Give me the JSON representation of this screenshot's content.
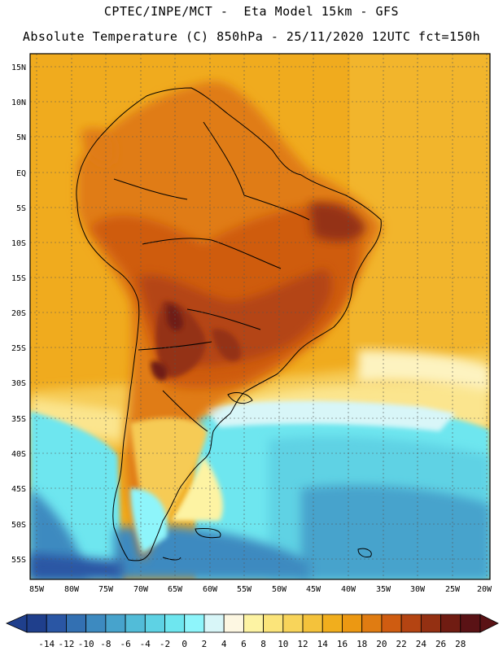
{
  "header": {
    "line1": "CPTEC/INPE/MCT -  Eta Model 15km - GFS",
    "line2": "Absolute Temperature (C) 850hPa - 25/11/2020 12UTC fct=150h"
  },
  "map": {
    "variable": "Absolute Temperature",
    "units": "C",
    "level": "850hPa",
    "model": "Eta Model 15km - GFS",
    "lat_labels": [
      "15N",
      "10N",
      "5N",
      "EQ",
      "5S",
      "10S",
      "15S",
      "20S",
      "25S",
      "30S",
      "35S",
      "40S",
      "45S",
      "50S",
      "55S"
    ],
    "lon_labels": [
      "85W",
      "80W",
      "75W",
      "70W",
      "65W",
      "60W",
      "55W",
      "50W",
      "45W",
      "40W",
      "35W",
      "30W",
      "25W",
      "20W"
    ]
  },
  "colorbar": {
    "labels": [
      "-14",
      "-12",
      "-10",
      "-8",
      "-6",
      "-4",
      "-2",
      "0",
      "2",
      "4",
      "6",
      "8",
      "10",
      "12",
      "14",
      "16",
      "18",
      "20",
      "22",
      "24",
      "26",
      "28"
    ],
    "colors": [
      "#1f3f8c",
      "#2a56a4",
      "#3370b2",
      "#3d8ac0",
      "#47a3cc",
      "#52bcd8",
      "#5ed2e4",
      "#6ee6ef",
      "#8ef5fb",
      "#d8f6f8",
      "#fdf7e2",
      "#fdf3a3",
      "#fbe47a",
      "#f8d45a",
      "#f4c23b",
      "#f1ae1d",
      "#ec9812",
      "#e07c12",
      "#cf5c11",
      "#b44412",
      "#943012",
      "#701c12",
      "#5a1215"
    ]
  }
}
